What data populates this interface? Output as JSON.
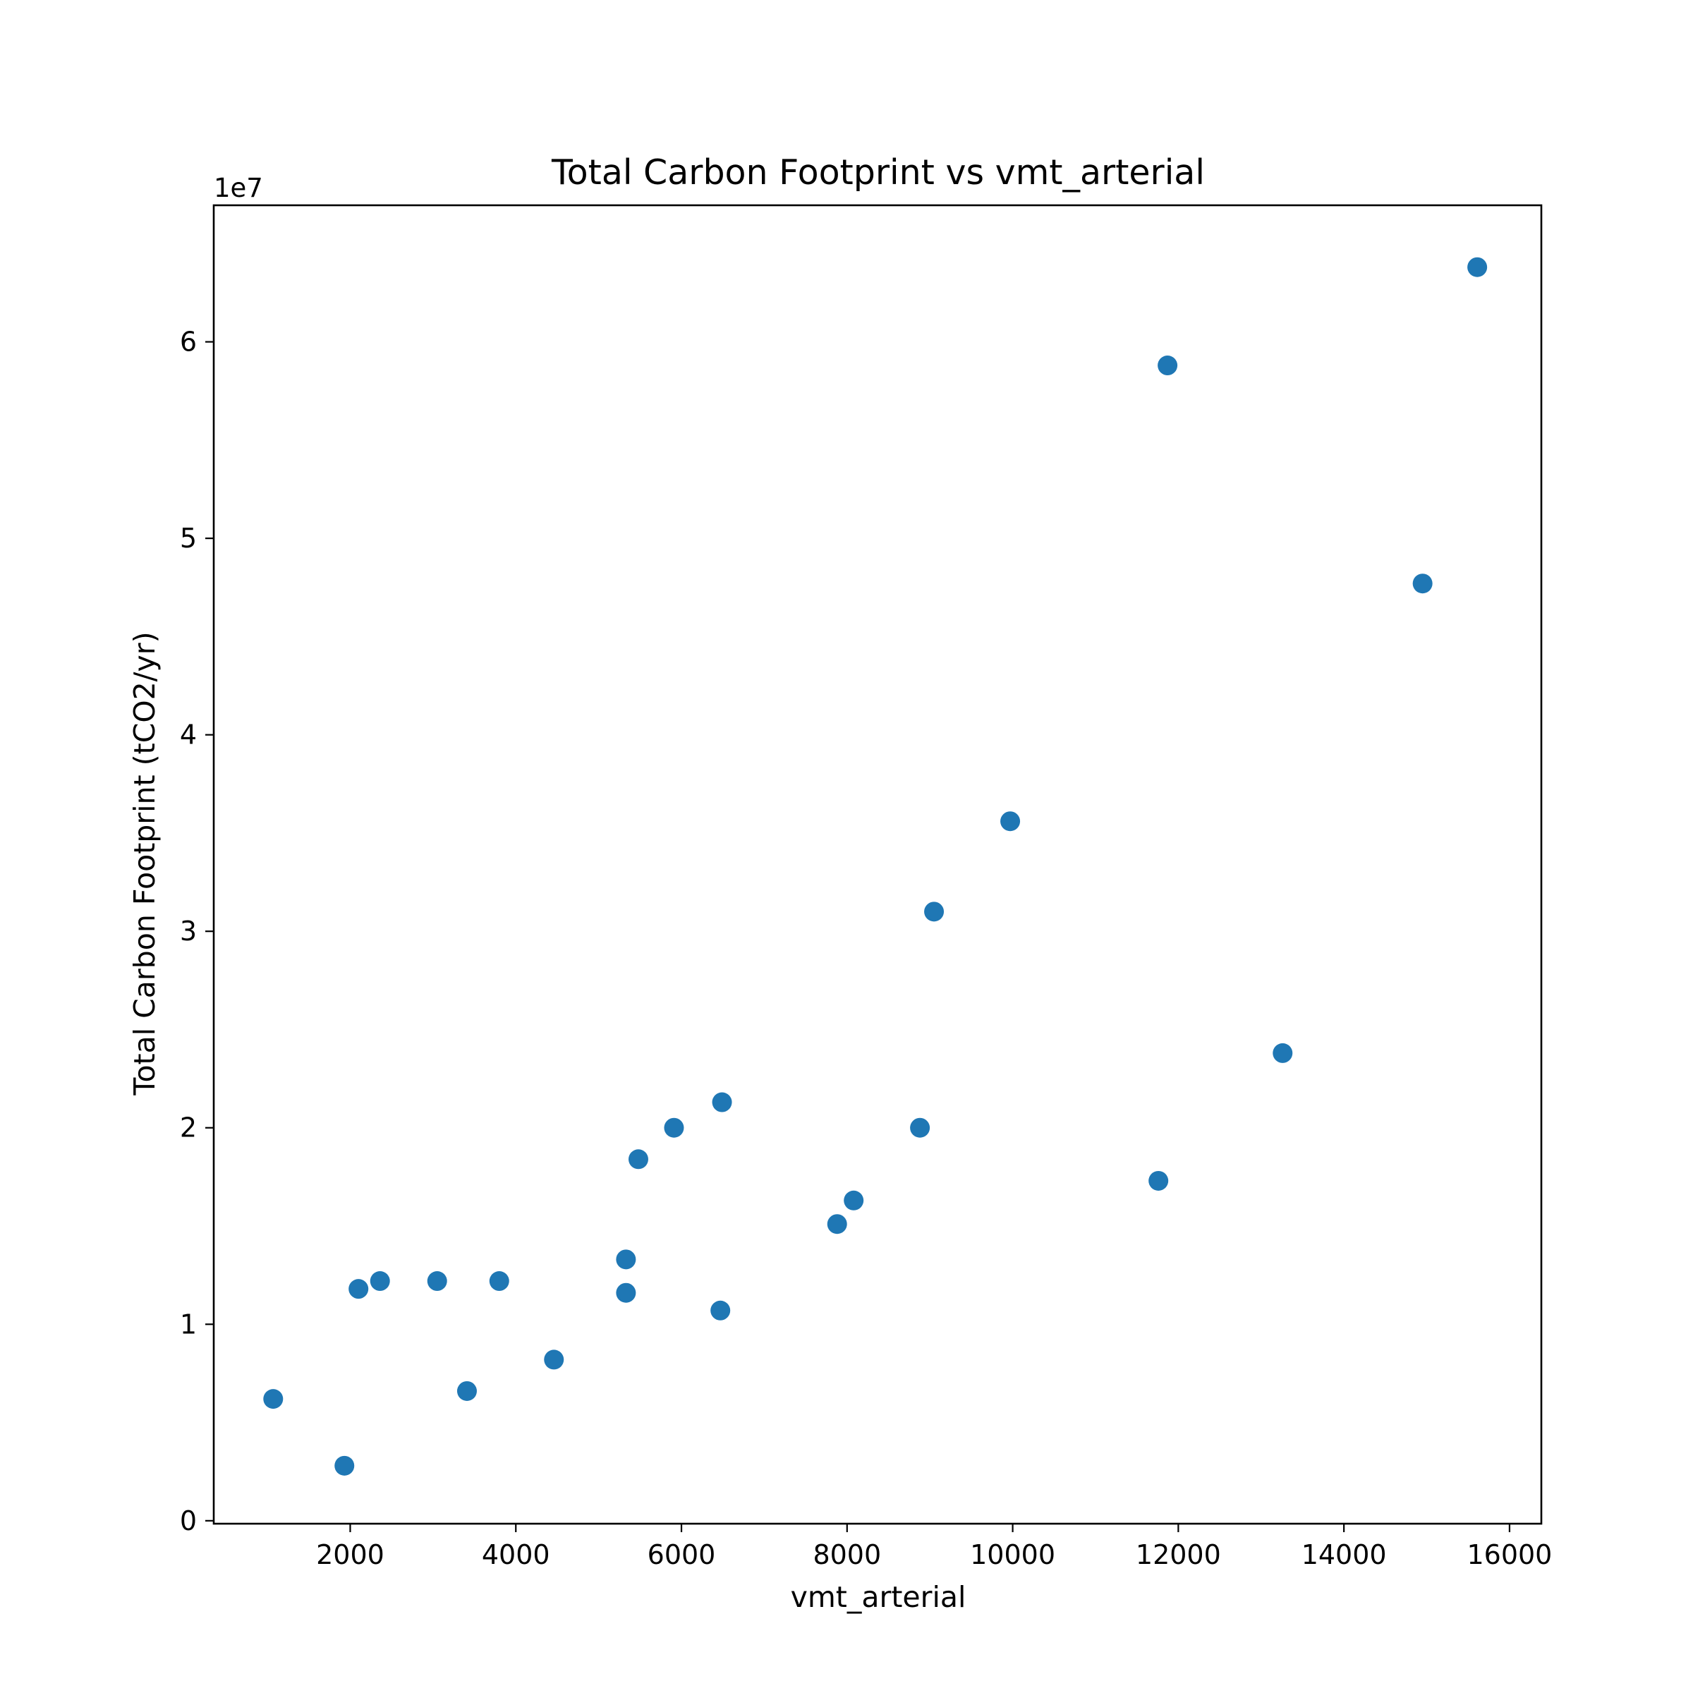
{
  "chart_data": {
    "type": "scatter",
    "title": "Total Carbon Footprint vs vmt_arterial",
    "xlabel": "vmt_arterial",
    "ylabel": "Total Carbon Footprint (tCO2/yr)",
    "y_offset_label": "1e7",
    "xlim": [
      352,
      16384
    ],
    "ylim": [
      -150000,
      66950000
    ],
    "x_ticks": [
      2000,
      4000,
      6000,
      8000,
      10000,
      12000,
      14000,
      16000
    ],
    "x_tick_labels": [
      "2000",
      "4000",
      "6000",
      "8000",
      "10000",
      "12000",
      "14000",
      "16000"
    ],
    "y_ticks": [
      0,
      10000000,
      20000000,
      30000000,
      40000000,
      50000000,
      60000000
    ],
    "y_tick_labels": [
      "0",
      "1",
      "2",
      "3",
      "4",
      "5",
      "6"
    ],
    "grid": false,
    "marker_color": "#1f77b4",
    "points": [
      {
        "x": 1070,
        "y": 6200000
      },
      {
        "x": 1930,
        "y": 2800000
      },
      {
        "x": 2100,
        "y": 11800000
      },
      {
        "x": 2360,
        "y": 12200000
      },
      {
        "x": 3050,
        "y": 12200000
      },
      {
        "x": 3410,
        "y": 6600000
      },
      {
        "x": 3800,
        "y": 12200000
      },
      {
        "x": 4460,
        "y": 8200000
      },
      {
        "x": 5330,
        "y": 13300000
      },
      {
        "x": 5330,
        "y": 11600000
      },
      {
        "x": 5480,
        "y": 18400000
      },
      {
        "x": 5910,
        "y": 20000000
      },
      {
        "x": 6470,
        "y": 10700000
      },
      {
        "x": 6490,
        "y": 21300000
      },
      {
        "x": 7880,
        "y": 15100000
      },
      {
        "x": 8080,
        "y": 16300000
      },
      {
        "x": 8880,
        "y": 20000000
      },
      {
        "x": 9050,
        "y": 31000000
      },
      {
        "x": 9970,
        "y": 35600000
      },
      {
        "x": 11760,
        "y": 17300000
      },
      {
        "x": 11870,
        "y": 58800000
      },
      {
        "x": 13260,
        "y": 23800000
      },
      {
        "x": 14950,
        "y": 47700000
      },
      {
        "x": 15610,
        "y": 63800000
      }
    ]
  }
}
